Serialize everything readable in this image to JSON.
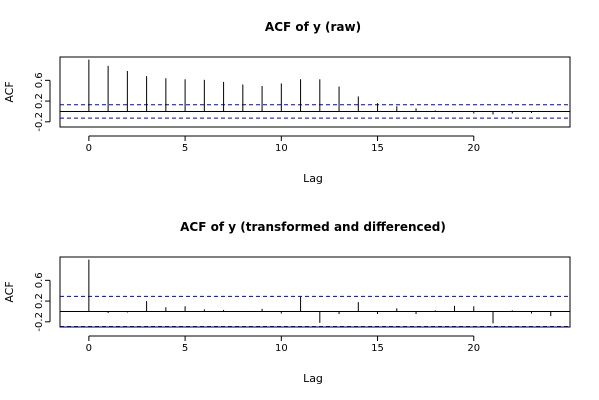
{
  "chart_data": [
    {
      "type": "bar",
      "title": "ACF of y (raw)",
      "xlabel": "Lag",
      "ylabel": "ACF",
      "xlim": [
        -1.5,
        25
      ],
      "ylim": [
        -0.3,
        1.05
      ],
      "xticks": [
        0,
        5,
        10,
        15,
        20
      ],
      "xtick_labels": [
        "0",
        "5",
        "10",
        "15",
        "20"
      ],
      "yticks": [
        -0.2,
        0.2,
        0.6
      ],
      "ytick_labels": [
        "-0.2",
        "0.2",
        "0.6"
      ],
      "ci": 0.13,
      "colors": {
        "bars": "#000000",
        "zero_line": "#000000",
        "ci_lines": "#0000cc"
      },
      "x": [
        0,
        1,
        2,
        3,
        4,
        5,
        6,
        7,
        8,
        9,
        10,
        11,
        12,
        13,
        14,
        15,
        16,
        17,
        18,
        19,
        20,
        21,
        22,
        23,
        24
      ],
      "values": [
        1.0,
        0.88,
        0.78,
        0.68,
        0.64,
        0.62,
        0.61,
        0.57,
        0.52,
        0.49,
        0.54,
        0.62,
        0.62,
        0.48,
        0.29,
        0.16,
        0.1,
        0.06,
        0.02,
        -0.01,
        -0.04,
        -0.06,
        -0.04,
        -0.03,
        -0.01
      ]
    },
    {
      "type": "bar",
      "title": "ACF of y (transformed and differenced)",
      "xlabel": "Lag",
      "ylabel": "ACF",
      "xlim": [
        -1.5,
        25
      ],
      "ylim": [
        -0.3,
        1.05
      ],
      "xticks": [
        0,
        5,
        10,
        15,
        20
      ],
      "xtick_labels": [
        "0",
        "5",
        "10",
        "15",
        "20"
      ],
      "yticks": [
        -0.2,
        0.2,
        0.6
      ],
      "ytick_labels": [
        "-0.2",
        "0.2",
        "0.6"
      ],
      "ci": 0.29,
      "colors": {
        "bars": "#000000",
        "zero_line": "#000000",
        "ci_lines": "#0000cc"
      },
      "x": [
        0,
        1,
        2,
        3,
        4,
        5,
        6,
        7,
        8,
        9,
        10,
        11,
        12,
        13,
        14,
        15,
        16,
        17,
        18,
        19,
        20,
        21,
        22,
        23,
        24
      ],
      "values": [
        1.0,
        -0.03,
        -0.02,
        0.2,
        0.08,
        0.1,
        0.04,
        0.03,
        0.01,
        0.05,
        -0.04,
        0.28,
        -0.22,
        -0.05,
        0.18,
        -0.05,
        0.06,
        -0.05,
        0.02,
        0.11,
        0.1,
        -0.23,
        0.02,
        -0.04,
        -0.09
      ]
    }
  ]
}
